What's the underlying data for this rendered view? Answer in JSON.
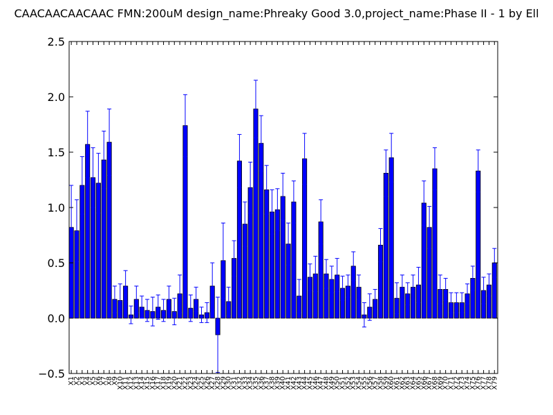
{
  "chart_data": {
    "type": "bar",
    "title": "CAACAACAACAAC  FMN:200uM  design_name:Phreaky Good 3.0,project_name:Phase II - 1 by Ell",
    "xlabel": "",
    "ylabel": "",
    "ylim": [
      -0.5,
      2.5
    ],
    "yticks": [
      "−0.5",
      "0.0",
      "0.5",
      "1.0",
      "1.5",
      "2.0",
      "2.5"
    ],
    "ytick_values": [
      -0.5,
      0.0,
      0.5,
      1.0,
      1.5,
      2.0,
      2.5
    ],
    "grid": false,
    "legend": "none",
    "bar_color": "#0000ff",
    "errorbar_color": "#0000ff",
    "categories": [
      "X1",
      "X2",
      "X3",
      "X4",
      "X5",
      "X6",
      "X7",
      "X8",
      "X9",
      "X10",
      "X11",
      "X12",
      "X13",
      "X14",
      "X15",
      "X16",
      "X17",
      "X18",
      "X19",
      "X20",
      "X21",
      "X22",
      "X23",
      "X24",
      "X25",
      "X26",
      "X27",
      "X28",
      "X29",
      "X30",
      "X31",
      "X32",
      "X33",
      "X34",
      "X35",
      "X36",
      "X37",
      "X38",
      "X39",
      "X40",
      "X41",
      "X42",
      "X43",
      "X44",
      "X45",
      "X46",
      "X47",
      "X48",
      "X49",
      "X50",
      "X51",
      "X52",
      "X53",
      "X54",
      "X55",
      "X56",
      "X57",
      "X58",
      "X59",
      "X60",
      "X61",
      "X62",
      "X63",
      "X64",
      "X65",
      "X66",
      "X67",
      "X68",
      "X69",
      "X70",
      "X71",
      "X72",
      "X73",
      "X74",
      "X75",
      "X76",
      "X77",
      "X78",
      "X79"
    ],
    "values": [
      0.82,
      0.79,
      1.2,
      1.57,
      1.27,
      1.22,
      1.43,
      1.59,
      0.17,
      0.16,
      0.29,
      0.03,
      0.17,
      0.1,
      0.07,
      0.06,
      0.1,
      0.07,
      0.17,
      0.06,
      0.22,
      1.74,
      0.09,
      0.17,
      0.03,
      0.05,
      0.29,
      -0.15,
      0.52,
      0.15,
      0.54,
      1.42,
      0.85,
      1.18,
      1.89,
      1.58,
      1.16,
      0.96,
      0.98,
      1.1,
      0.67,
      1.05,
      0.2,
      1.44,
      0.37,
      0.4,
      0.87,
      0.4,
      0.35,
      0.39,
      0.27,
      0.29,
      0.47,
      0.28,
      0.03,
      0.1,
      0.17,
      0.66,
      1.31,
      1.45,
      0.18,
      0.28,
      0.22,
      0.28,
      0.3,
      1.04,
      0.82,
      1.35,
      0.26,
      0.26,
      0.14,
      0.14,
      0.14,
      0.22,
      0.36,
      1.33,
      0.25,
      0.3,
      0.5
    ],
    "errors": [
      0.38,
      0.28,
      0.26,
      0.3,
      0.27,
      0.27,
      0.26,
      0.3,
      0.12,
      0.15,
      0.14,
      0.08,
      0.12,
      0.1,
      0.1,
      0.13,
      0.11,
      0.1,
      0.12,
      0.12,
      0.17,
      0.28,
      0.12,
      0.11,
      0.07,
      0.09,
      0.21,
      0.34,
      0.34,
      0.13,
      0.16,
      0.24,
      0.2,
      0.23,
      0.26,
      0.25,
      0.22,
      0.2,
      0.19,
      0.21,
      0.19,
      0.19,
      0.15,
      0.23,
      0.12,
      0.16,
      0.2,
      0.13,
      0.12,
      0.15,
      0.11,
      0.1,
      0.13,
      0.11,
      0.11,
      0.12,
      0.09,
      0.15,
      0.21,
      0.22,
      0.14,
      0.11,
      0.1,
      0.11,
      0.16,
      0.2,
      0.19,
      0.19,
      0.13,
      0.1,
      0.09,
      0.09,
      0.09,
      0.09,
      0.11,
      0.19,
      0.12,
      0.1,
      0.13
    ]
  }
}
